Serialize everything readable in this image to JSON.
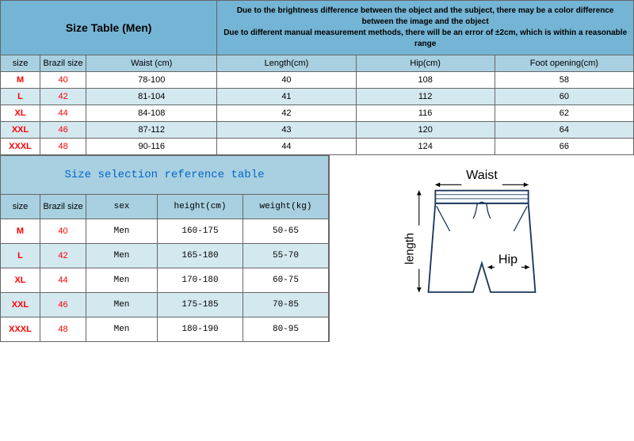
{
  "main_table": {
    "title": "Size Table (Men)",
    "disclaimer": "Due to the brightness difference between the object and the subject, there may be a color difference between the image and the object\nDue to different manual measurement methods, there will be an error of ±2cm, which is within a reasonable range",
    "headers": {
      "size": "size",
      "brazil": "Brazil size",
      "waist": "Waist (cm)",
      "length": "Length(cm)",
      "hip": "Hip(cm)",
      "foot": "Foot opening(cm)"
    },
    "rows": [
      {
        "size": "M",
        "brazil": "40",
        "waist": "78-100",
        "length": "40",
        "hip": "108",
        "foot": "58"
      },
      {
        "size": "L",
        "brazil": "42",
        "waist": "81-104",
        "length": "41",
        "hip": "112",
        "foot": "60"
      },
      {
        "size": "XL",
        "brazil": "44",
        "waist": "84-108",
        "length": "42",
        "hip": "116",
        "foot": "62"
      },
      {
        "size": "XXL",
        "brazil": "46",
        "waist": "87-112",
        "length": "43",
        "hip": "120",
        "foot": "64"
      },
      {
        "size": "XXXL",
        "brazil": "48",
        "waist": "90-116",
        "length": "44",
        "hip": "124",
        "foot": "66"
      }
    ]
  },
  "ref_table": {
    "title": "Size selection reference table",
    "headers": {
      "size": "size",
      "brazil": "Brazil size",
      "sex": "sex",
      "height": "height(cm)",
      "weight": "weight(kg)"
    },
    "rows": [
      {
        "size": "M",
        "brazil": "40",
        "sex": "Men",
        "height": "160-175",
        "weight": "50-65"
      },
      {
        "size": "L",
        "brazil": "42",
        "sex": "Men",
        "height": "165-180",
        "weight": "55-70"
      },
      {
        "size": "XL",
        "brazil": "44",
        "sex": "Men",
        "height": "170-180",
        "weight": "60-75"
      },
      {
        "size": "XXL",
        "brazil": "46",
        "sex": "Men",
        "height": "175-185",
        "weight": "70-85"
      },
      {
        "size": "XXXL",
        "brazil": "48",
        "sex": "Men",
        "height": "180-190",
        "weight": "80-95"
      }
    ]
  },
  "diagram": {
    "waist_label": "Waist",
    "length_label": "length",
    "hip_label": "Hip",
    "stroke_color": "#1a365d",
    "bg_color": "#ffffff"
  },
  "colors": {
    "header_blue": "#74b4d4",
    "header_light": "#a8d0e0",
    "row_light": "#d4e8f0",
    "row_white": "#ffffff",
    "size_color": "#ff0000",
    "ref_title_color": "#0066cc",
    "border": "#666666"
  }
}
